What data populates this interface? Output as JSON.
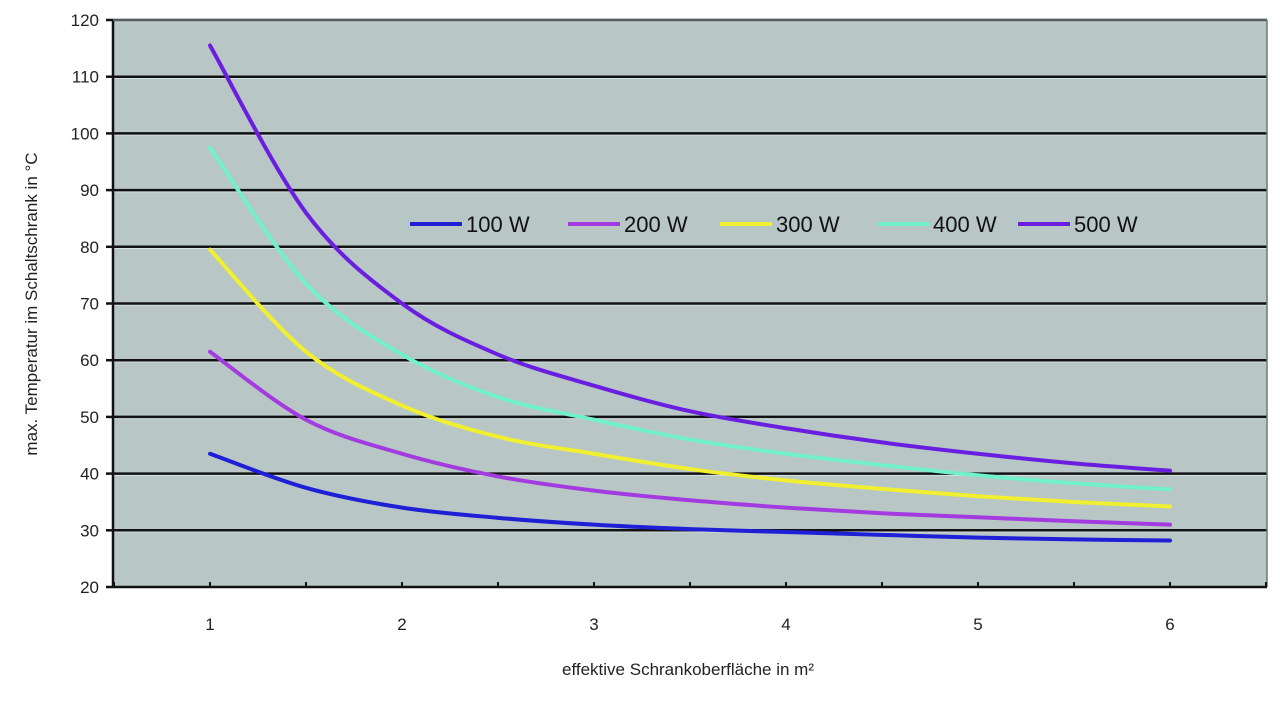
{
  "chart_data": {
    "type": "line",
    "title": "",
    "xlabel": "effektive Schrankoberfläche in m²",
    "ylabel": "max. Temperatur im Schaltschrank in °C",
    "xlim": [
      0.5,
      6.5
    ],
    "ylim": [
      20,
      120
    ],
    "x_ticks": [
      1,
      2,
      3,
      4,
      5,
      6
    ],
    "y_ticks": [
      20,
      30,
      40,
      50,
      60,
      70,
      80,
      90,
      100,
      110,
      120
    ],
    "grid": "horizontal",
    "legend_position": "top-right-inside",
    "x": [
      1,
      1.5,
      2,
      2.5,
      3,
      3.5,
      4,
      4.5,
      5,
      5.5,
      6
    ],
    "series": [
      {
        "name": "100 W",
        "color": "#1f1fd6",
        "values": [
          43.5,
          37.5,
          34.0,
          32.2,
          31.0,
          30.2,
          29.7,
          29.2,
          28.7,
          28.4,
          28.2
        ]
      },
      {
        "name": "200 W",
        "color": "#a43be0",
        "values": [
          61.5,
          49.5,
          43.5,
          39.5,
          37.0,
          35.3,
          34.0,
          33.0,
          32.3,
          31.6,
          31.0
        ]
      },
      {
        "name": "300 W",
        "color": "#f0f030",
        "values": [
          79.5,
          61.5,
          52.0,
          46.5,
          43.5,
          40.8,
          38.8,
          37.3,
          36.0,
          35.0,
          34.2
        ]
      },
      {
        "name": "400 W",
        "color": "#72f0c8",
        "values": [
          97.5,
          73.5,
          61.0,
          53.5,
          49.5,
          46.0,
          43.5,
          41.5,
          39.7,
          38.3,
          37.2
        ]
      },
      {
        "name": "500 W",
        "color": "#6a1ee0",
        "values": [
          115.5,
          86.0,
          70.0,
          61.0,
          55.5,
          51.0,
          48.0,
          45.5,
          43.5,
          41.8,
          40.5
        ]
      }
    ]
  },
  "colors": {
    "plot_background": "#b8c6c6",
    "gridline": "#111111",
    "axis": "#111111"
  }
}
